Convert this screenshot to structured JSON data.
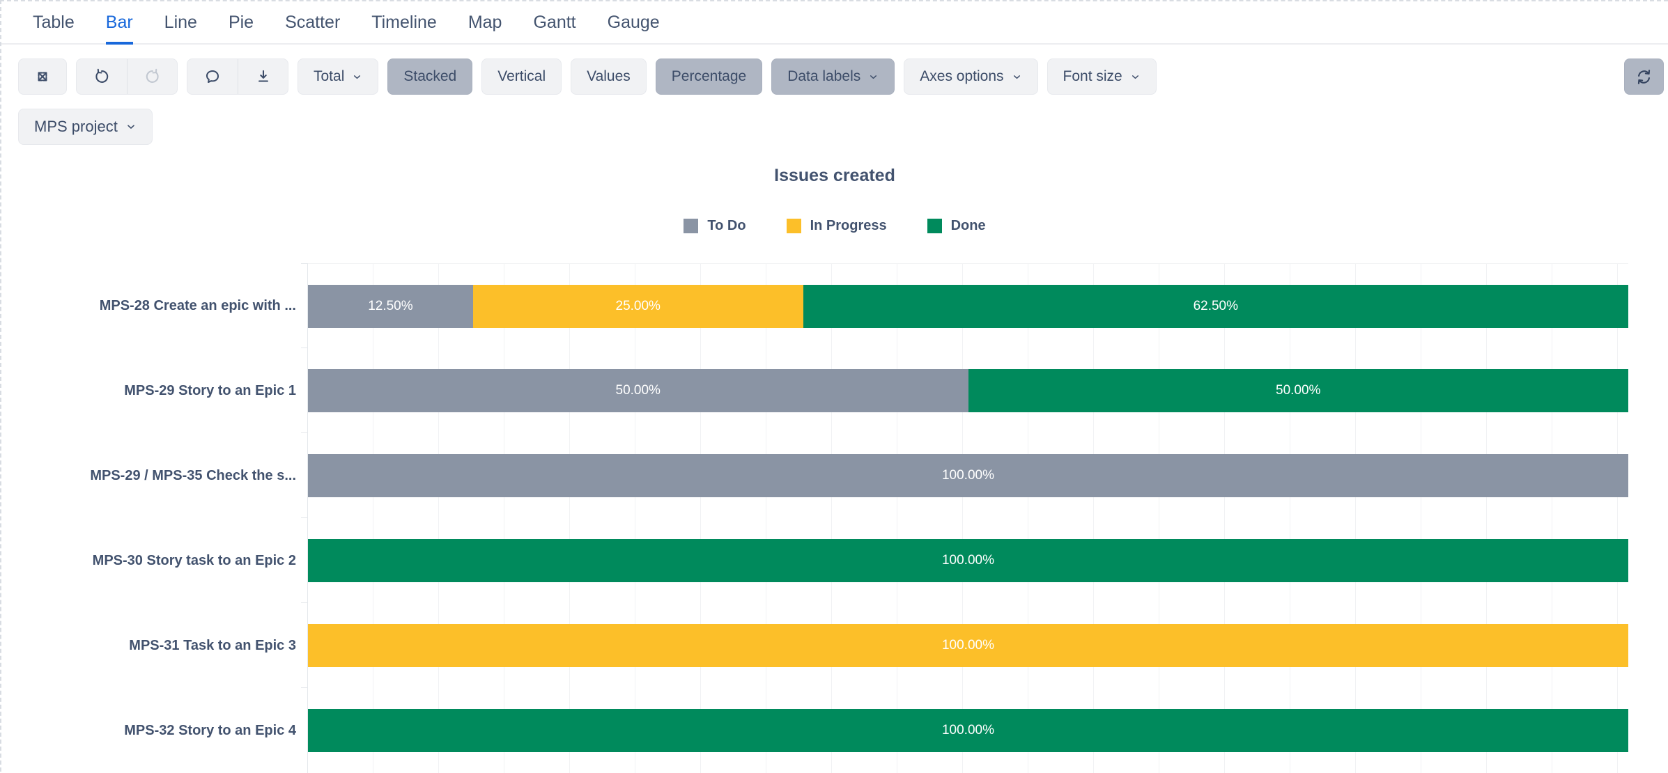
{
  "tabs": [
    {
      "label": "Table",
      "active": false
    },
    {
      "label": "Bar",
      "active": true
    },
    {
      "label": "Line",
      "active": false
    },
    {
      "label": "Pie",
      "active": false
    },
    {
      "label": "Scatter",
      "active": false
    },
    {
      "label": "Timeline",
      "active": false
    },
    {
      "label": "Map",
      "active": false
    },
    {
      "label": "Gantt",
      "active": false
    },
    {
      "label": "Gauge",
      "active": false
    }
  ],
  "toolbar": {
    "icons": [
      "expand-icon",
      "undo-icon",
      "redo-icon",
      "comment-icon",
      "download-icon",
      "refresh-icon"
    ],
    "total_label": "Total",
    "stacked_label": "Stacked",
    "vertical_label": "Vertical",
    "values_label": "Values",
    "percentage_label": "Percentage",
    "data_labels_label": "Data labels",
    "axes_options_label": "Axes options",
    "font_size_label": "Font size",
    "states": {
      "stacked_active": true,
      "percentage_active": true,
      "data_labels_active": true,
      "refresh_active": true,
      "redo_disabled": true
    }
  },
  "project_selector": {
    "label": "MPS project"
  },
  "colors": {
    "accent_blue": "#1868DB",
    "button_bg": "#F1F2F4",
    "button_active_bg": "#AFB6C3",
    "text_slate": "#42526E",
    "gridline": "#F1F2F4"
  },
  "chart_data": {
    "type": "bar",
    "orientation": "horizontal",
    "stacking": "percent",
    "title": "Issues created",
    "legend_position": "top",
    "grid": "vertical",
    "gridline_step_pct": 5,
    "xlim": [
      0,
      100
    ],
    "legend": [
      {
        "name": "To Do",
        "color": "#8A94A4"
      },
      {
        "name": "In Progress",
        "color": "#FCBF29"
      },
      {
        "name": "Done",
        "color": "#008A5C"
      }
    ],
    "categories": [
      "MPS-28 Create an epic with ...",
      "MPS-29 Story to an Epic 1",
      "MPS-29 / MPS-35 Check the s...",
      "MPS-30 Story task to an Epic 2",
      "MPS-31 Task to an Epic 3",
      "MPS-32 Story to an Epic 4"
    ],
    "series": [
      {
        "name": "To Do",
        "color": "#8A94A4",
        "values": [
          12.5,
          50,
          100,
          0,
          0,
          0
        ]
      },
      {
        "name": "In Progress",
        "color": "#FCBF29",
        "values": [
          25,
          0,
          0,
          0,
          100,
          0
        ]
      },
      {
        "name": "Done",
        "color": "#008A5C",
        "values": [
          62.5,
          50,
          0,
          100,
          0,
          100
        ]
      }
    ],
    "rows": [
      {
        "category": "MPS-28 Create an epic with ...",
        "segments": [
          {
            "series": "To Do",
            "pct": 12.5,
            "label": "12.50%"
          },
          {
            "series": "In Progress",
            "pct": 25,
            "label": "25.00%"
          },
          {
            "series": "Done",
            "pct": 62.5,
            "label": "62.50%"
          }
        ]
      },
      {
        "category": "MPS-29 Story to an Epic 1",
        "segments": [
          {
            "series": "To Do",
            "pct": 50,
            "label": "50.00%"
          },
          {
            "series": "Done",
            "pct": 50,
            "label": "50.00%"
          }
        ]
      },
      {
        "category": "MPS-29 / MPS-35 Check the s...",
        "segments": [
          {
            "series": "To Do",
            "pct": 100,
            "label": "100.00%"
          }
        ]
      },
      {
        "category": "MPS-30 Story task to an Epic 2",
        "segments": [
          {
            "series": "Done",
            "pct": 100,
            "label": "100.00%"
          }
        ]
      },
      {
        "category": "MPS-31 Task to an Epic 3",
        "segments": [
          {
            "series": "In Progress",
            "pct": 100,
            "label": "100.00%"
          }
        ]
      },
      {
        "category": "MPS-32 Story to an Epic 4",
        "segments": [
          {
            "series": "Done",
            "pct": 100,
            "label": "100.00%"
          }
        ]
      }
    ]
  }
}
